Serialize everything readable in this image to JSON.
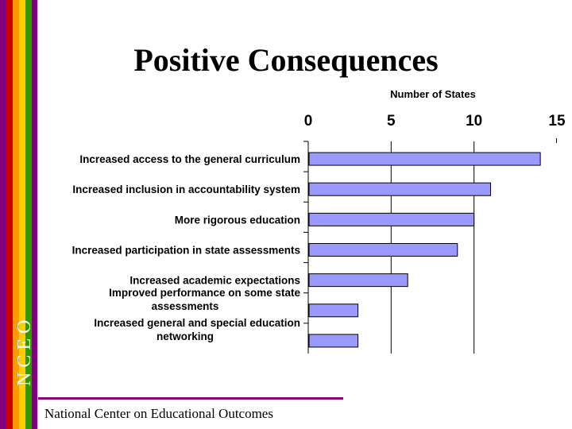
{
  "slide": {
    "title": "Positive Consequences",
    "brand": "NCEO",
    "footer": "National Center on Educational Outcomes",
    "colors": {
      "stripe_purple": "#800080",
      "stripe_red": "#cc0000",
      "stripe_orange": "#ff9900",
      "stripe_yellow": "#ffcc00",
      "stripe_green": "#339900",
      "footer_line": "#800080",
      "bar_fill": "#9999ff"
    }
  },
  "chart_data": {
    "type": "bar",
    "orientation": "horizontal",
    "xlabel": "Number of States",
    "xlim": [
      0,
      15
    ],
    "xticks": [
      "0",
      "5",
      "10",
      "15"
    ],
    "xtick_values": [
      0,
      5,
      10,
      15
    ],
    "gridlines": true,
    "categories": [
      [
        "Increased access to the general curriculum"
      ],
      [
        "Increased inclusion in accountability system"
      ],
      [
        "More rigorous education"
      ],
      [
        "Increased participation in state assessments"
      ],
      [
        "Increased academic expectations"
      ],
      [
        "Improved performance on some state",
        "assessments"
      ],
      [
        "Increased general and special education",
        "networking"
      ]
    ],
    "values": [
      14,
      11,
      10,
      9,
      6,
      3,
      3
    ]
  }
}
